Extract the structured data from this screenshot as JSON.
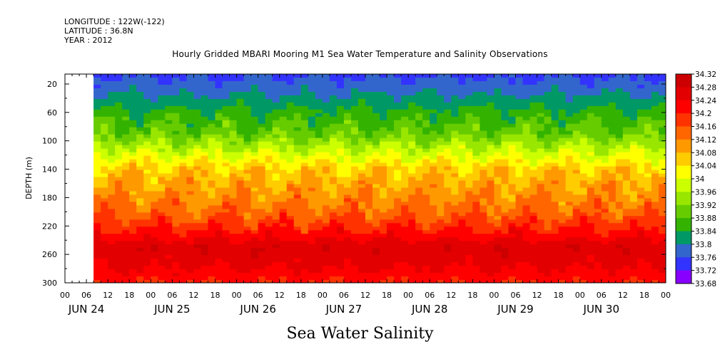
{
  "header": {
    "longitude": "LONGITUDE : 122W(-122)",
    "latitude": "LATITUDE : 36.8N",
    "year": "YEAR : 2012"
  },
  "chart_data": {
    "type": "heatmap",
    "title": "Hourly Gridded MBARI Mooring M1 Sea Water Temperature and Salinity Observations",
    "xlabel": "Sea Water Salinity",
    "ylabel": "DEPTH (m)",
    "x_hour_ticks": [
      "00",
      "06",
      "12",
      "18",
      "00",
      "06",
      "12",
      "18",
      "00",
      "06",
      "12",
      "18",
      "00",
      "06",
      "12",
      "18",
      "00",
      "06",
      "12",
      "18",
      "00",
      "06",
      "12",
      "18",
      "00",
      "06",
      "12",
      "18",
      "00"
    ],
    "x_day_labels": [
      "JUN 24",
      "JUN 25",
      "JUN 26",
      "JUN 27",
      "JUN 28",
      "JUN 29",
      "JUN 30"
    ],
    "xlim_hours": [
      0,
      168
    ],
    "data_start_hour": 8,
    "y_ticks": [
      20,
      60,
      100,
      140,
      180,
      220,
      260,
      300
    ],
    "ylim": [
      300,
      0
    ],
    "y_top_depth": 6,
    "colorbar": {
      "levels": [
        "34.32",
        "34.28",
        "34.24",
        "34.2",
        "34.16",
        "34.12",
        "34.08",
        "34.04",
        "34",
        "33.96",
        "33.92",
        "33.88",
        "33.84",
        "33.8",
        "33.76",
        "33.72",
        "33.68"
      ],
      "colors": [
        "#cc0000",
        "#e30000",
        "#ff0000",
        "#ff3300",
        "#ff6600",
        "#ff9900",
        "#ffcc00",
        "#ffff00",
        "#ccff00",
        "#99e600",
        "#66cc00",
        "#33b300",
        "#009966",
        "#3366cc",
        "#3333ff",
        "#8800ff"
      ]
    },
    "depth_profile": [
      {
        "depth": 6,
        "value": 33.75
      },
      {
        "depth": 30,
        "value": 33.79
      },
      {
        "depth": 60,
        "value": 33.85
      },
      {
        "depth": 90,
        "value": 33.9
      },
      {
        "depth": 115,
        "value": 33.98
      },
      {
        "depth": 140,
        "value": 34.06
      },
      {
        "depth": 170,
        "value": 34.1
      },
      {
        "depth": 200,
        "value": 34.14
      },
      {
        "depth": 225,
        "value": 34.2
      },
      {
        "depth": 250,
        "value": 34.27
      },
      {
        "depth": 275,
        "value": 34.25
      },
      {
        "depth": 300,
        "value": 34.2
      }
    ]
  }
}
